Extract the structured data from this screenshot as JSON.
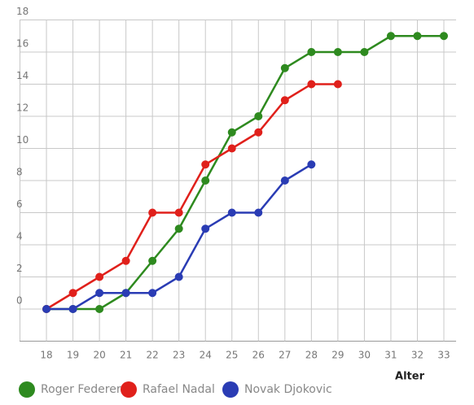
{
  "chart_data": {
    "type": "line",
    "x": [
      18,
      19,
      20,
      21,
      22,
      23,
      24,
      25,
      26,
      27,
      28,
      29,
      30,
      31,
      32,
      33
    ],
    "series": [
      {
        "name": "Roger Federer",
        "color": "#2e8a1f",
        "values": [
          0,
          0,
          0,
          1,
          3,
          5,
          8,
          11,
          12,
          15,
          16,
          16,
          16,
          17,
          17,
          17
        ]
      },
      {
        "name": "Rafael Nadal",
        "color": "#e0201b",
        "values": [
          0,
          1,
          2,
          3,
          6,
          6,
          9,
          10,
          11,
          13,
          14,
          14,
          null,
          null,
          null,
          null
        ]
      },
      {
        "name": "Novak Djokovic",
        "color": "#2a3cb4",
        "values": [
          0,
          0,
          1,
          1,
          1,
          2,
          5,
          6,
          6,
          8,
          9,
          null,
          null,
          null,
          null,
          null
        ]
      }
    ],
    "x_label": "Alter",
    "xlim": [
      17,
      33
    ],
    "xticks": [
      18,
      19,
      20,
      21,
      22,
      23,
      24,
      25,
      26,
      27,
      28,
      29,
      30,
      31,
      32,
      33
    ],
    "ylim": [
      -2,
      18
    ],
    "yticks": [
      0,
      2,
      4,
      6,
      8,
      10,
      12,
      14,
      16,
      18
    ],
    "grid": true,
    "legend": "bottom"
  }
}
